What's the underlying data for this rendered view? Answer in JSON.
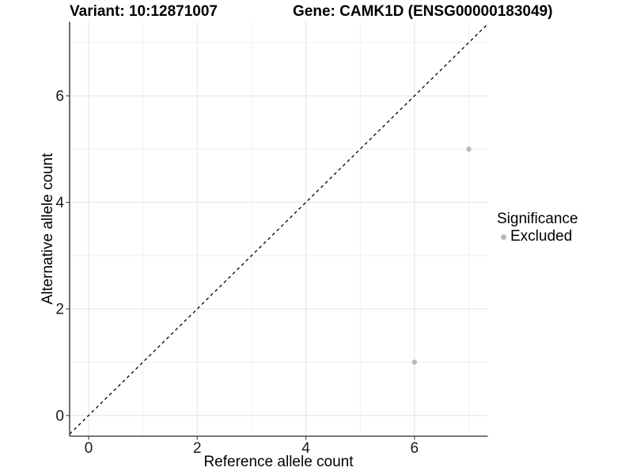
{
  "chart_data": {
    "type": "scatter",
    "titles": {
      "left": "Variant: 10:12871007",
      "right": "Gene: CAMK1D (ENSG00000183049)"
    },
    "xlabel": "Reference allele count",
    "ylabel": "Alternative allele count",
    "xlim": [
      -0.35,
      7.35
    ],
    "ylim": [
      -0.39,
      7.39
    ],
    "x_ticks": [
      0,
      2,
      4,
      6
    ],
    "y_ticks": [
      0,
      2,
      4,
      6
    ],
    "minor_grid_x": [
      1,
      3,
      5,
      7
    ],
    "minor_grid_y": [
      1,
      3,
      5,
      7
    ],
    "grid": "major+minor",
    "reference_line": {
      "type": "identity",
      "style": "dashed",
      "color": "#000000"
    },
    "series": [
      {
        "name": "Excluded",
        "marker": "circle",
        "color": "#b8b8b8",
        "points": [
          [
            7,
            5
          ],
          [
            6,
            1
          ]
        ]
      }
    ],
    "legend": {
      "title": "Significance",
      "position": "right",
      "entries": [
        {
          "label": "Excluded",
          "color": "#b8b8b8"
        }
      ]
    },
    "colors": {
      "axis_line": "#4d4d4d",
      "grid_major": "#e3e3e3",
      "grid_minor": "#f0f0f0",
      "tick_label": "#1a1a1a",
      "text": "#000000"
    }
  }
}
